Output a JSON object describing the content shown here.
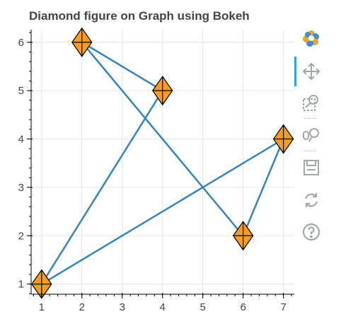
{
  "chart_data": {
    "type": "line",
    "title": "Diamond figure on Graph using Bokeh",
    "x": [
      1,
      4,
      2,
      6,
      7,
      1
    ],
    "y": [
      1,
      5,
      6,
      2,
      4,
      1
    ],
    "series": [
      {
        "name": "",
        "x": [
          1,
          4,
          2,
          6,
          7,
          1
        ],
        "y": [
          1,
          5,
          6,
          2,
          4,
          1
        ],
        "color": "#1f77b4"
      }
    ],
    "markers": {
      "shape": "diamond",
      "fill": "#f89c20",
      "line": "#000000",
      "x": [
        1,
        4,
        2,
        6,
        7
      ],
      "y": [
        1,
        5,
        6,
        2,
        4
      ]
    },
    "xticks": [
      "1",
      "2",
      "3",
      "4",
      "5",
      "6",
      "7"
    ],
    "yticks": [
      "1",
      "2",
      "3",
      "4",
      "5",
      "6"
    ],
    "xlim": [
      0.74,
      7.27
    ],
    "ylim": [
      0.79,
      6.26
    ],
    "xlabel": "",
    "ylabel": "",
    "grid": true,
    "legend": "none"
  },
  "toolbar": {
    "items": [
      {
        "name": "bokeh-logo-icon",
        "interactable": true
      },
      {
        "name": "pan-icon",
        "interactable": true,
        "active": true
      },
      {
        "name": "box-zoom-icon",
        "interactable": true
      },
      {
        "name": "wheel-zoom-icon",
        "interactable": true
      },
      {
        "name": "save-icon",
        "interactable": true
      },
      {
        "name": "reset-icon",
        "interactable": true
      },
      {
        "name": "help-icon",
        "interactable": true
      }
    ]
  }
}
